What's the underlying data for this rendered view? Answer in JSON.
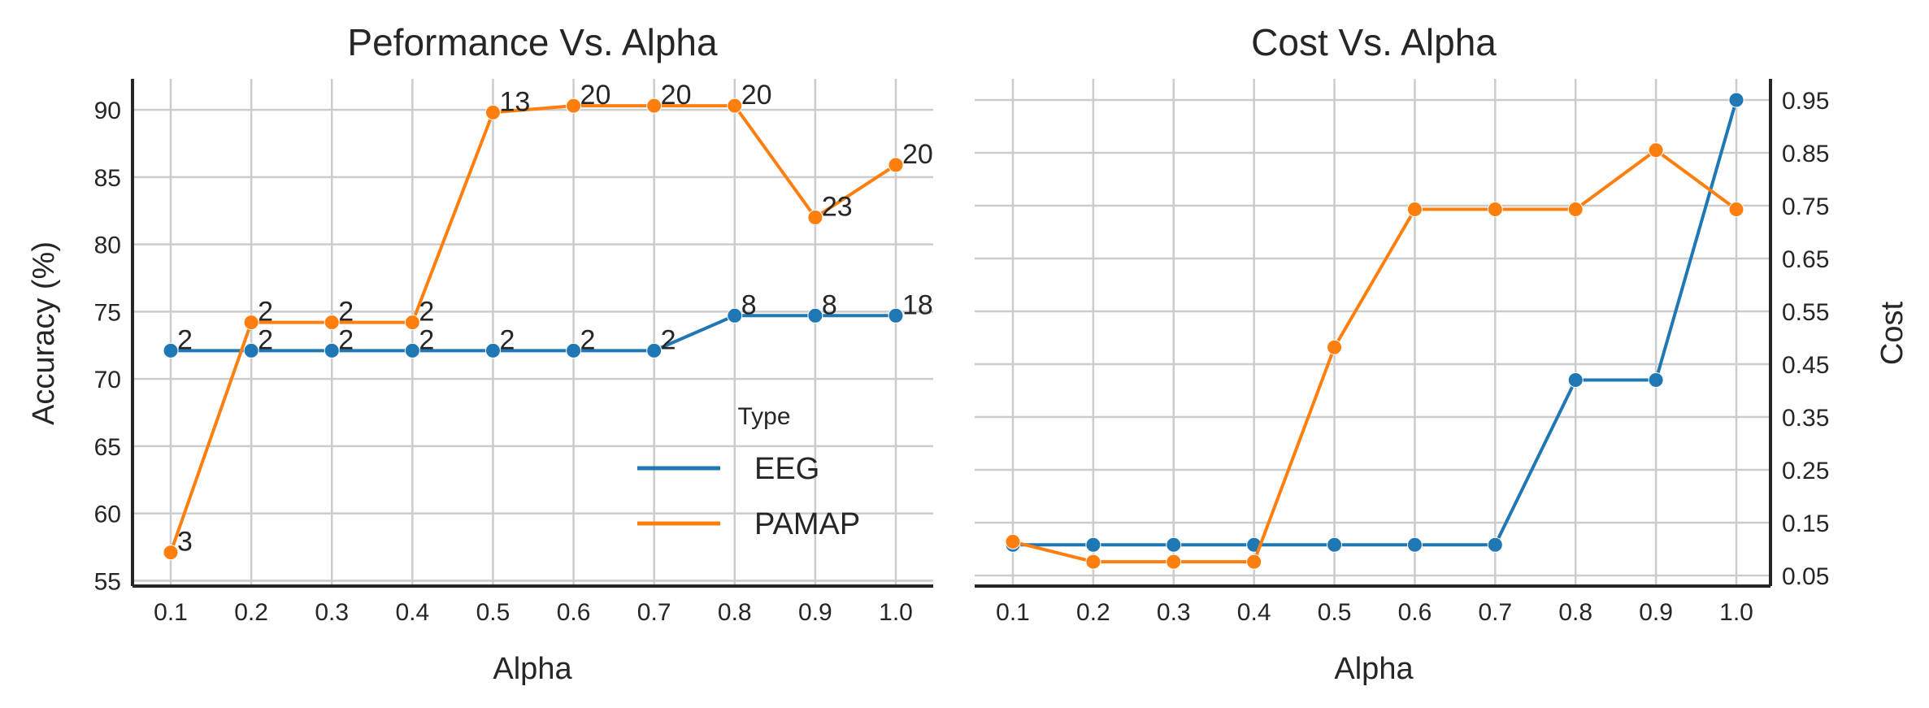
{
  "colors": {
    "EEG": "#1f77b4",
    "PAMAP": "#ff7f0e"
  },
  "chart_data": [
    {
      "type": "line",
      "title": "Peformance Vs. Alpha",
      "xlabel": "Alpha",
      "ylabel": "Accuracy (%)",
      "x": [
        0.1,
        0.2,
        0.3,
        0.4,
        0.5,
        0.6,
        0.7,
        0.8,
        0.9,
        1.0
      ],
      "x_tick_labels": [
        "0.1",
        "0.2",
        "0.3",
        "0.4",
        "0.5",
        "0.6",
        "0.7",
        "0.8",
        "0.9",
        "1.0"
      ],
      "ylim": [
        54.6,
        92.3
      ],
      "y_ticks": [
        55,
        60,
        65,
        70,
        75,
        80,
        85,
        90
      ],
      "y_axis_side": "left",
      "grid": true,
      "legend": {
        "title": "Type",
        "placement": "lower-right",
        "entries": [
          "EEG",
          "PAMAP"
        ]
      },
      "series": [
        {
          "name": "EEG",
          "values": [
            72.1,
            72.1,
            72.1,
            72.1,
            72.1,
            72.1,
            72.1,
            74.7,
            74.7,
            74.7
          ],
          "annotations": [
            "2",
            "2",
            "2",
            "2",
            "2",
            "2",
            "2",
            "8",
            "8",
            "18"
          ]
        },
        {
          "name": "PAMAP",
          "values": [
            57.1,
            74.2,
            74.2,
            74.2,
            89.8,
            90.3,
            90.3,
            90.3,
            82.0,
            85.9
          ],
          "annotations": [
            "3",
            "2",
            "2",
            "2",
            "13",
            "20",
            "20",
            "20",
            "23",
            "20"
          ]
        }
      ]
    },
    {
      "type": "line",
      "title": "Cost Vs. Alpha",
      "xlabel": "Alpha",
      "ylabel": "Cost",
      "x": [
        0.1,
        0.2,
        0.3,
        0.4,
        0.5,
        0.6,
        0.7,
        0.8,
        0.9,
        1.0
      ],
      "x_tick_labels": [
        "0.1",
        "0.2",
        "0.3",
        "0.4",
        "0.5",
        "0.6",
        "0.7",
        "0.8",
        "0.9",
        "1.0"
      ],
      "ylim": [
        0.03,
        0.99
      ],
      "y_ticks": [
        0.05,
        0.15,
        0.25,
        0.35,
        0.45,
        0.55,
        0.65,
        0.75,
        0.85,
        0.95
      ],
      "y_tick_labels": [
        "0.05",
        "0.15",
        "0.25",
        "0.35",
        "0.45",
        "0.55",
        "0.65",
        "0.75",
        "0.85",
        "0.95"
      ],
      "y_axis_side": "right",
      "grid": true,
      "series": [
        {
          "name": "EEG",
          "values": [
            0.108,
            0.108,
            0.108,
            0.108,
            0.108,
            0.108,
            0.108,
            0.42,
            0.42,
            0.95
          ]
        },
        {
          "name": "PAMAP",
          "values": [
            0.114,
            0.076,
            0.076,
            0.076,
            0.482,
            0.743,
            0.743,
            0.743,
            0.855,
            0.743
          ]
        }
      ]
    }
  ]
}
